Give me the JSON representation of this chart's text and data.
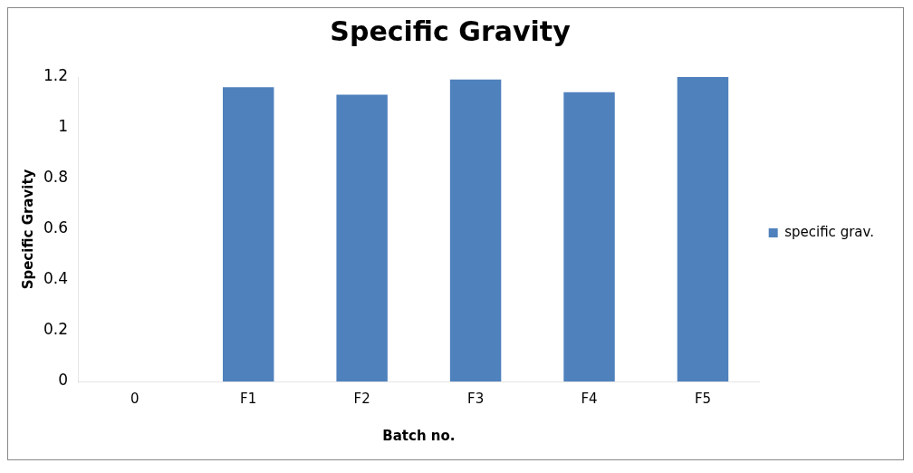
{
  "chart_data": {
    "type": "bar",
    "title": "Specific Gravity",
    "xlabel": "Batch no.",
    "ylabel": "Specific Gravity",
    "categories": [
      "0",
      "F1",
      "F2",
      "F3",
      "F4",
      "F5"
    ],
    "series": [
      {
        "name": "specific grav.",
        "color": "#4f81bd",
        "values": [
          0,
          1.16,
          1.13,
          1.19,
          1.14,
          1.2
        ]
      }
    ],
    "ylim": [
      0,
      1.2
    ],
    "yticks": [
      0,
      0.2,
      0.4,
      0.6,
      0.8,
      1,
      1.2
    ],
    "grid": false,
    "legend": "right"
  }
}
